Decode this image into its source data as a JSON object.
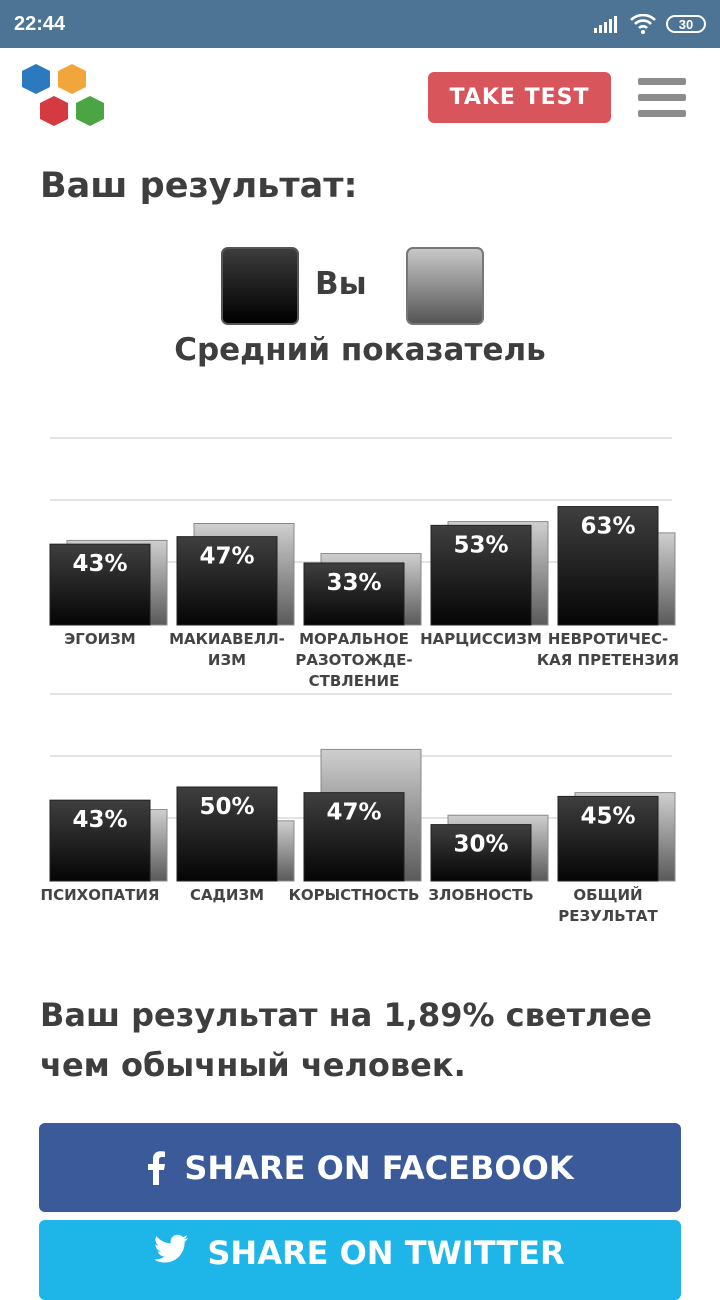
{
  "status_bar": {
    "time": "22:44",
    "battery": "30"
  },
  "header": {
    "take_test_label": "TAKE TEST"
  },
  "page": {
    "title": "Ваш результат:",
    "legend_you": "Вы",
    "legend_avg": "Средний показатель",
    "summary": "Ваш результат на 1,89% светлее чем обычный человек."
  },
  "share": {
    "facebook_label": "SHARE ON FACEBOOK",
    "twitter_label": "SHARE ON TWITTER"
  },
  "colors": {
    "status_bar": "#4e7495",
    "take_test": "#d9555c",
    "facebook": "#3b5a9a",
    "twitter": "#1eb6e8"
  },
  "chart_data": {
    "type": "bar",
    "series_names": [
      "Вы",
      "Средний показатель"
    ],
    "rows": [
      {
        "categories": [
          [
            "ЭГОИЗМ"
          ],
          [
            "МАКИАВЕЛЛ-",
            "ИЗМ"
          ],
          [
            "МОРАЛЬНОЕ",
            "РАЗОТОЖДЕ-",
            "СТВЛЕНИЕ"
          ],
          [
            "НАРЦИССИЗМ"
          ],
          [
            "НЕВРОТИЧЕС-",
            "КАЯ ПРЕТЕНЗИЯ"
          ]
        ],
        "you": [
          43,
          47,
          33,
          53,
          63
        ],
        "average": [
          45,
          54,
          38,
          55,
          49
        ],
        "labels": [
          "43%",
          "47%",
          "33%",
          "53%",
          "63%"
        ]
      },
      {
        "categories": [
          [
            "ПСИХОПАТИЯ"
          ],
          [
            "САДИЗМ"
          ],
          [
            "КОРЫСТНОСТЬ"
          ],
          [
            "ЗЛОБНОСТЬ"
          ],
          [
            "ОБЩИЙ",
            "РЕЗУЛЬТАТ"
          ]
        ],
        "you": [
          43,
          50,
          47,
          30,
          45
        ],
        "average": [
          38,
          32,
          70,
          35,
          47
        ],
        "labels": [
          "43%",
          "50%",
          "47%",
          "30%",
          "45%"
        ]
      }
    ],
    "ylim": [
      0,
      100
    ],
    "grid": true
  }
}
